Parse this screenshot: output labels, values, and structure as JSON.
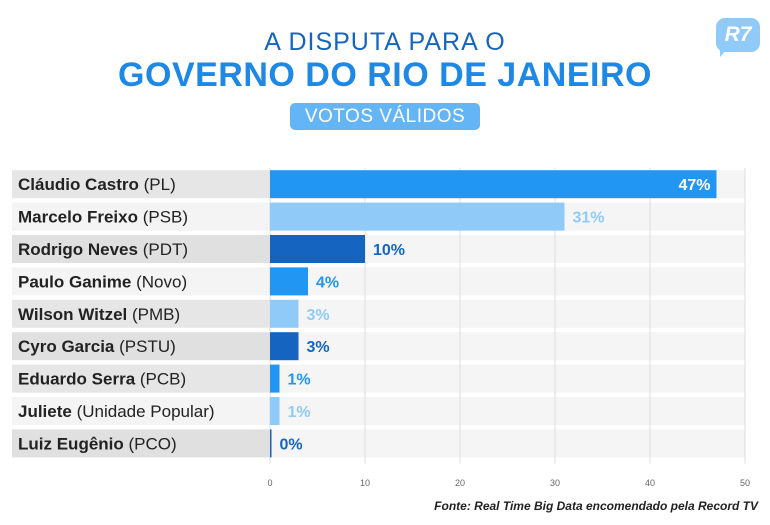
{
  "header": {
    "title_line1": "A DISPUTA PARA O",
    "title_line2": "GOVERNO DO RIO DE JANEIRO",
    "subtitle": "VOTOS VÁLIDOS"
  },
  "logo": {
    "text": "R7",
    "color": "#90caf9"
  },
  "source": "Fonte: Real Time Big Data encomendado pela Record TV",
  "chart_data": {
    "type": "bar",
    "orientation": "horizontal",
    "categories": [
      {
        "name": "Cláudio Castro",
        "party": "(PL)"
      },
      {
        "name": "Marcelo Freixo",
        "party": "(PSB)"
      },
      {
        "name": "Rodrigo Neves",
        "party": "(PDT)"
      },
      {
        "name": "Paulo Ganime",
        "party": "(Novo)"
      },
      {
        "name": "Wilson Witzel",
        "party": "(PMB)"
      },
      {
        "name": "Cyro Garcia",
        "party": "(PSTU)"
      },
      {
        "name": "Eduardo Serra",
        "party": "(PCB)"
      },
      {
        "name": "Juliete",
        "party": "(Unidade Popular)"
      },
      {
        "name": "Luiz Eugênio",
        "party": "(PCO)"
      }
    ],
    "values": [
      47,
      31,
      10,
      4,
      3,
      3,
      1,
      1,
      0
    ],
    "value_labels": [
      "47%",
      "31%",
      "10%",
      "4%",
      "3%",
      "3%",
      "1%",
      "1%",
      "0%"
    ],
    "bar_colors": [
      "#2196f3",
      "#90caf9",
      "#1565c0",
      "#2196f3",
      "#90caf9",
      "#1565c0",
      "#2196f3",
      "#90caf9",
      "#1565c0"
    ],
    "label_colors": [
      "#ffffff",
      "#90caf9",
      "#1565c0",
      "#2196f3",
      "#90caf9",
      "#1565c0",
      "#2196f3",
      "#90caf9",
      "#1565c0"
    ],
    "xlim": [
      0,
      50
    ],
    "xticks": [
      0,
      10,
      20,
      30,
      40,
      50
    ],
    "grid": true,
    "xlabel": "",
    "ylabel": ""
  }
}
